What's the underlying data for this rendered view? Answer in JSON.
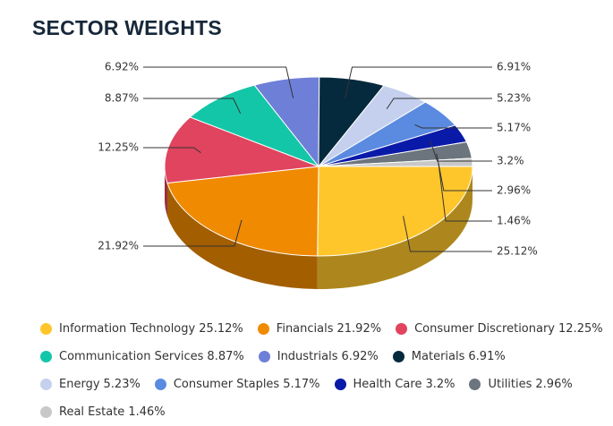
{
  "chart_data": {
    "type": "pie",
    "title": "SECTOR WEIGHTS",
    "categories": [
      "Information Technology",
      "Financials",
      "Consumer Discretionary",
      "Communication Services",
      "Industrials",
      "Materials",
      "Energy",
      "Consumer Staples",
      "Health Care",
      "Utilities",
      "Real Estate"
    ],
    "values": [
      25.12,
      21.92,
      12.25,
      8.87,
      6.92,
      6.91,
      5.23,
      5.17,
      3.2,
      2.96,
      1.46
    ],
    "value_labels": [
      "25.12%",
      "21.92%",
      "12.25%",
      "8.87%",
      "6.92%",
      "6.91%",
      "5.23%",
      "5.17%",
      "3.2%",
      "2.96%",
      "1.46%"
    ],
    "colors": [
      "#ffc62b",
      "#f08a00",
      "#e0445f",
      "#14c6a8",
      "#6e7fd8",
      "#062a3d",
      "#c5d0ee",
      "#5b8be0",
      "#0a1aa8",
      "#6c757d",
      "#c8c8c8"
    ],
    "legend": "bottom"
  }
}
